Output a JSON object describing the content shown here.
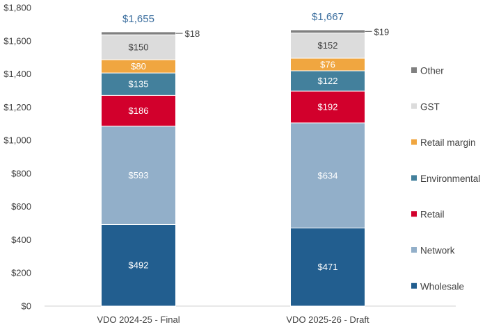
{
  "chart_data": {
    "type": "bar",
    "stacked": true,
    "categories": [
      "VDO 2024-25 - Final",
      "VDO 2025-26 - Draft"
    ],
    "ylim": [
      0,
      1800
    ],
    "yticks": [
      0,
      200,
      400,
      600,
      800,
      1000,
      1200,
      1400,
      1600,
      1800
    ],
    "ytick_labels": [
      "$0",
      "$200",
      "$400",
      "$600",
      "$800",
      "$1,000",
      "$1,200",
      "$1,400",
      "$1,600",
      "$1,800"
    ],
    "grid": false,
    "legend_position": "right",
    "series": [
      {
        "name": "Wholesale",
        "color": "#225e8f",
        "label_color": "#ffffff",
        "values": [
          492,
          471
        ],
        "labels": [
          "$492",
          "$471"
        ]
      },
      {
        "name": "Network",
        "color": "#92afc9",
        "label_color": "#ffffff",
        "values": [
          593,
          634
        ],
        "labels": [
          "$593",
          "$634"
        ]
      },
      {
        "name": "Retail",
        "color": "#d2002c",
        "label_color": "#ffffff",
        "values": [
          186,
          192
        ],
        "labels": [
          "$186",
          "$192"
        ]
      },
      {
        "name": "Environmental",
        "color": "#43809c",
        "label_color": "#ffffff",
        "values": [
          135,
          122
        ],
        "labels": [
          "$135",
          "$122"
        ]
      },
      {
        "name": "Retail margin",
        "color": "#f0a640",
        "label_color": "#ffffff",
        "values": [
          80,
          76
        ],
        "labels": [
          "$80",
          "$76"
        ]
      },
      {
        "name": "GST",
        "color": "#dcdcdc",
        "label_color": "#404040",
        "values": [
          150,
          152
        ],
        "labels": [
          "$150",
          "$152"
        ]
      },
      {
        "name": "Other",
        "color": "#808080",
        "label_color": "#404040",
        "values": [
          18,
          19
        ],
        "labels": [
          "$18",
          "$19"
        ],
        "label_outside": true
      }
    ],
    "totals": [
      "$1,655",
      "$1,667"
    ]
  }
}
